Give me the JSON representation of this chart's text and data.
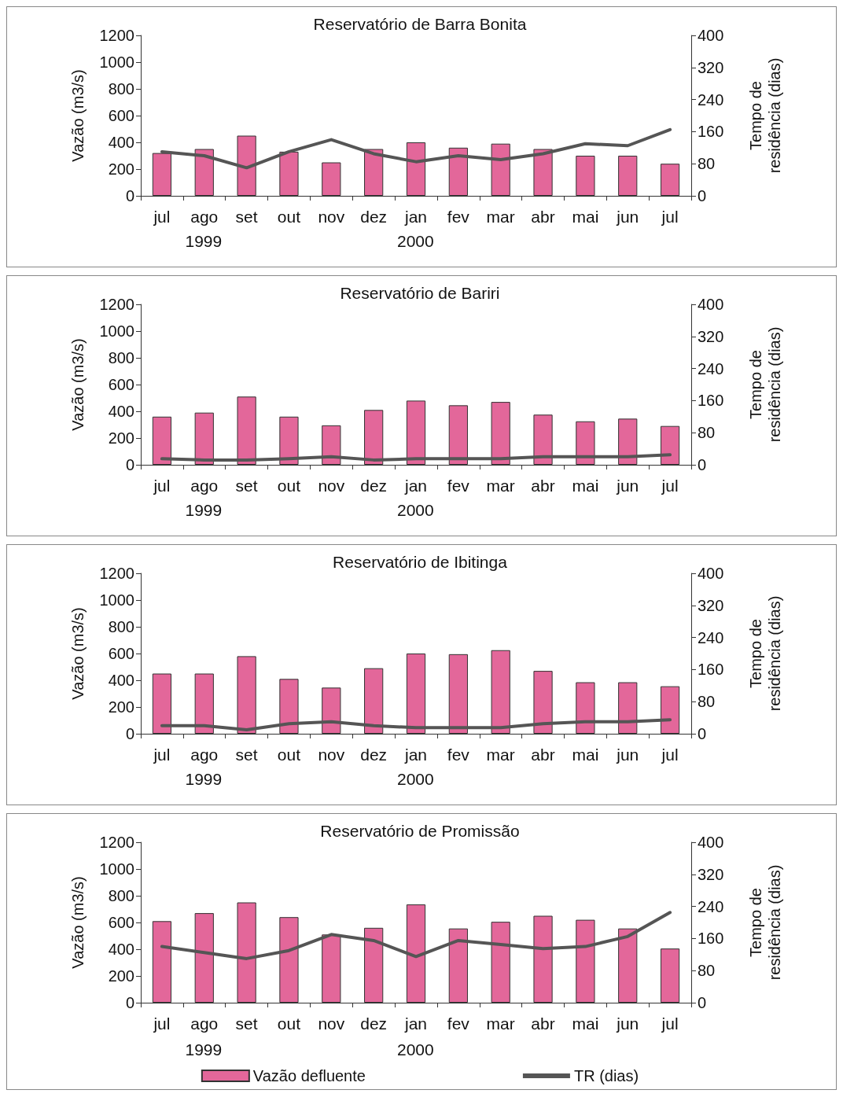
{
  "chart_data": [
    {
      "type": "bar",
      "title": "Reservatório de Barra Bonita",
      "ylabel": "Vazão (m3/s)",
      "y2label": "Tempo de residência (dias)",
      "categories": [
        "jul",
        "ago",
        "set",
        "out",
        "nov",
        "dez",
        "jan",
        "fev",
        "mar",
        "abr",
        "mai",
        "jun",
        "jul"
      ],
      "annotations": [
        "1999",
        "2000"
      ],
      "ylim": [
        0,
        1200
      ],
      "yticks": [
        0,
        200,
        400,
        600,
        800,
        1000,
        1200
      ],
      "y2lim": [
        0,
        400
      ],
      "y2ticks": [
        0,
        80,
        160,
        240,
        320,
        400
      ],
      "grid": false,
      "legend": false,
      "marker": "none",
      "series": [
        {
          "color": "#e3679a",
          "values": [
            320,
            350,
            450,
            330,
            250,
            350,
            400,
            360,
            390,
            350,
            300,
            300,
            240
          ]
        },
        {
          "type": "line",
          "axis": "y2",
          "color": "#555555",
          "values": [
            110,
            100,
            70,
            110,
            140,
            105,
            85,
            100,
            90,
            105,
            130,
            125,
            165
          ]
        }
      ]
    },
    {
      "type": "bar",
      "title": "Reservatório de Bariri",
      "ylabel": "Vazão (m3/s)",
      "y2label": "Tempo de residência (dias)",
      "categories": [
        "jul",
        "ago",
        "set",
        "out",
        "nov",
        "dez",
        "jan",
        "fev",
        "mar",
        "abr",
        "mai",
        "jun",
        "jul"
      ],
      "annotations": [
        "1999",
        "2000"
      ],
      "ylim": [
        0,
        1200
      ],
      "yticks": [
        0,
        200,
        400,
        600,
        800,
        1000,
        1200
      ],
      "y2lim": [
        0,
        400
      ],
      "y2ticks": [
        0,
        80,
        160,
        240,
        320,
        400
      ],
      "grid": false,
      "legend": false,
      "marker": "none",
      "series": [
        {
          "color": "#e3679a",
          "values": [
            360,
            390,
            510,
            360,
            295,
            410,
            480,
            445,
            470,
            375,
            325,
            345,
            290
          ]
        },
        {
          "type": "line",
          "axis": "y2",
          "color": "#555555",
          "values": [
            15,
            12,
            12,
            15,
            20,
            12,
            15,
            15,
            15,
            20,
            20,
            20,
            25
          ]
        }
      ]
    },
    {
      "type": "bar",
      "title": "Reservatório de Ibitinga",
      "ylabel": "Vazão (m3/s)",
      "y2label": "Tempo de residência (dias)",
      "categories": [
        "jul",
        "ago",
        "set",
        "out",
        "nov",
        "dez",
        "jan",
        "fev",
        "mar",
        "abr",
        "mai",
        "jun",
        "jul"
      ],
      "annotations": [
        "1999",
        "2000"
      ],
      "ylim": [
        0,
        1200
      ],
      "yticks": [
        0,
        200,
        400,
        600,
        800,
        1000,
        1200
      ],
      "y2lim": [
        0,
        400
      ],
      "y2ticks": [
        0,
        80,
        160,
        240,
        320,
        400
      ],
      "grid": false,
      "legend": false,
      "marker": "none",
      "series": [
        {
          "color": "#e3679a",
          "values": [
            450,
            450,
            580,
            410,
            345,
            490,
            600,
            595,
            625,
            470,
            385,
            385,
            355
          ]
        },
        {
          "type": "line",
          "axis": "y2",
          "color": "#555555",
          "values": [
            20,
            20,
            10,
            25,
            30,
            20,
            15,
            15,
            15,
            25,
            30,
            30,
            35
          ]
        }
      ]
    },
    {
      "type": "bar",
      "title": "Reservatório de Promissão",
      "ylabel": "Vazão (m3/s)",
      "y2label": "Tempo de residência (dias)",
      "categories": [
        "jul",
        "ago",
        "set",
        "out",
        "nov",
        "dez",
        "jan",
        "fev",
        "mar",
        "abr",
        "mai",
        "jun",
        "jul"
      ],
      "annotations": [
        "1999",
        "2000"
      ],
      "ylim": [
        0,
        1200
      ],
      "yticks": [
        0,
        200,
        400,
        600,
        800,
        1000,
        1200
      ],
      "y2lim": [
        0,
        400
      ],
      "y2ticks": [
        0,
        80,
        160,
        240,
        320,
        400
      ],
      "grid": false,
      "legend": "bottom",
      "marker": "none",
      "series": [
        {
          "name": "Vazão defluente",
          "color": "#e3679a",
          "values": [
            610,
            670,
            750,
            640,
            510,
            560,
            735,
            555,
            605,
            650,
            620,
            555,
            405
          ]
        },
        {
          "type": "line",
          "axis": "y2",
          "name": "TR (dias)",
          "color": "#555555",
          "values": [
            140,
            125,
            110,
            130,
            170,
            155,
            115,
            155,
            145,
            135,
            140,
            165,
            225
          ]
        }
      ]
    }
  ]
}
